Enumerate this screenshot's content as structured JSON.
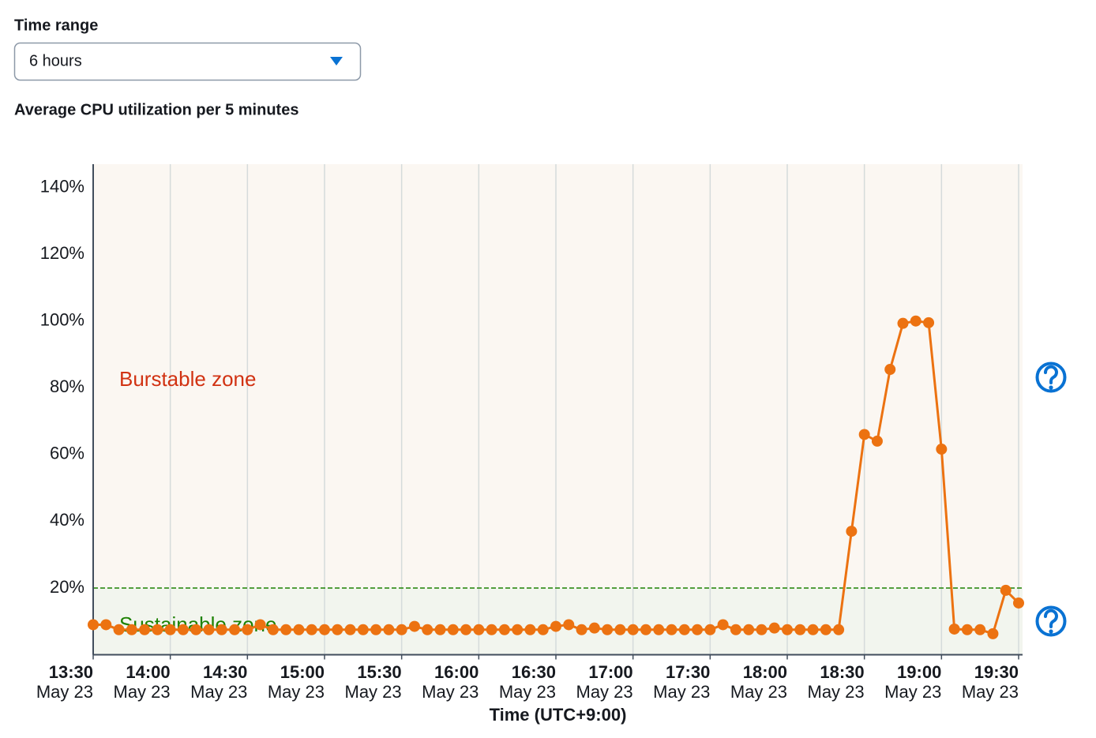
{
  "time_range_label": "Time range",
  "time_range_value": "6 hours",
  "chart_data": {
    "type": "line",
    "title": "Average CPU utilization per 5 minutes",
    "x_label": "Time (UTC+9:00)",
    "categories": [
      "13:30",
      null,
      null,
      null,
      null,
      null,
      "14:00",
      null,
      null,
      null,
      null,
      null,
      "14:30",
      null,
      null,
      null,
      null,
      null,
      "15:00",
      null,
      null,
      null,
      null,
      null,
      "15:30",
      null,
      null,
      null,
      null,
      null,
      "16:00",
      null,
      null,
      null,
      null,
      null,
      "16:30",
      null,
      null,
      null,
      null,
      null,
      "17:00",
      null,
      null,
      null,
      null,
      null,
      "17:30",
      null,
      null,
      null,
      null,
      null,
      "18:00",
      null,
      null,
      null,
      null,
      null,
      "18:30",
      null,
      null,
      null,
      null,
      null,
      "19:00",
      null,
      null,
      null,
      null,
      null,
      "19:30"
    ],
    "category_dates": [
      "May 23",
      null,
      null,
      null,
      null,
      null,
      "May 23",
      null,
      null,
      null,
      null,
      null,
      "May 23",
      null,
      null,
      null,
      null,
      null,
      "May 23",
      null,
      null,
      null,
      null,
      null,
      "May 23",
      null,
      null,
      null,
      null,
      null,
      "May 23",
      null,
      null,
      null,
      null,
      null,
      "May 23",
      null,
      null,
      null,
      null,
      null,
      "May 23",
      null,
      null,
      null,
      null,
      null,
      "May 23",
      null,
      null,
      null,
      null,
      null,
      "May 23",
      null,
      null,
      null,
      null,
      null,
      "May 23",
      null,
      null,
      null,
      null,
      null,
      "May 23",
      null,
      null,
      null,
      null,
      null,
      "May 23"
    ],
    "series": [
      {
        "name": "CPU utilization",
        "color": "#ec7211",
        "values": [
          9,
          9,
          7.5,
          7.5,
          7.5,
          7.5,
          7.5,
          7.5,
          7.5,
          7.5,
          7.5,
          7.5,
          7.5,
          9,
          7.5,
          7.5,
          7.5,
          7.5,
          7.5,
          7.5,
          7.5,
          7.5,
          7.5,
          7.5,
          7.5,
          8.5,
          7.5,
          7.5,
          7.5,
          7.5,
          7.5,
          7.5,
          7.5,
          7.5,
          7.5,
          7.5,
          8.5,
          9,
          7.5,
          8,
          7.5,
          7.5,
          7.5,
          7.5,
          7.5,
          7.5,
          7.5,
          7.5,
          7.5,
          9,
          7.5,
          7.5,
          7.5,
          8,
          7.5,
          7.5,
          7.5,
          7.5,
          7.5,
          37,
          66,
          64,
          85.5,
          99.3,
          100,
          99.5,
          61.6,
          7.7,
          7.5,
          7.5,
          6.3,
          19.3,
          15.5
        ]
      }
    ],
    "ylim": [
      0,
      147
    ],
    "yticks": [
      {
        "value": 20,
        "label": "20%"
      },
      {
        "value": 40,
        "label": "40%"
      },
      {
        "value": 60,
        "label": "60%"
      },
      {
        "value": 80,
        "label": "80%"
      },
      {
        "value": 100,
        "label": "100%"
      },
      {
        "value": 120,
        "label": "120%"
      },
      {
        "value": 140,
        "label": "140%"
      }
    ],
    "grid": "x",
    "threshold": 20,
    "annotations": [
      {
        "text": "Burstable zone",
        "color": "#d13212"
      },
      {
        "text": "Sustainable zone",
        "color": "#1d8102"
      }
    ]
  }
}
